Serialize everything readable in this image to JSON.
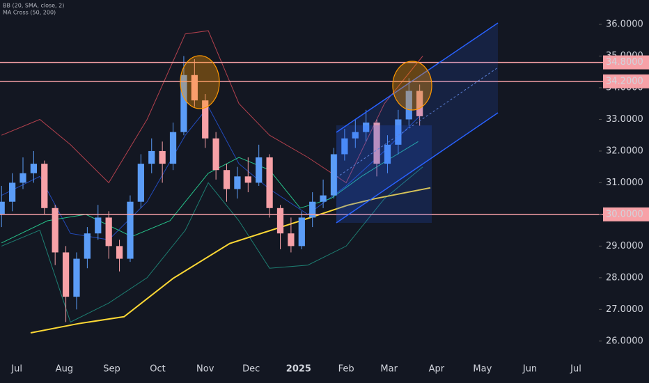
{
  "chart_data": {
    "type": "candlestick",
    "indicators": [
      "BB (20, SMA, close, 2)",
      "MA Cross (50, 200)"
    ],
    "up_color": "#5b9cf6",
    "down_color": "#f7a1a7",
    "x": [
      -10,
      -3,
      4,
      11,
      18,
      25,
      32,
      39,
      46,
      53,
      60,
      67,
      74,
      81,
      88,
      95,
      102,
      109,
      116,
      123,
      130,
      137,
      144,
      151,
      158,
      165,
      172,
      179,
      186,
      193,
      200,
      207,
      214,
      221,
      228,
      235,
      242,
      249,
      256,
      263
    ],
    "open": [
      30.0,
      30.4,
      31.0,
      31.3,
      31.6,
      30.2,
      28.8,
      27.4,
      28.6,
      29.4,
      29.9,
      29.0,
      28.6,
      30.4,
      31.6,
      32.0,
      31.6,
      32.6,
      34.4,
      33.6,
      32.4,
      31.4,
      30.8,
      31.2,
      31.0,
      31.8,
      30.2,
      29.4,
      29.0,
      29.9,
      30.4,
      30.6,
      31.9,
      32.4,
      32.6,
      32.9,
      31.6,
      32.2,
      33.0,
      33.9
    ],
    "high": [
      30.9,
      31.3,
      31.8,
      32.0,
      31.7,
      30.3,
      29.0,
      28.8,
      29.6,
      30.3,
      30.1,
      29.2,
      30.6,
      31.9,
      32.4,
      32.3,
      32.9,
      35.0,
      34.9,
      33.8,
      32.6,
      31.6,
      31.5,
      31.8,
      32.2,
      31.9,
      30.3,
      29.9,
      30.1,
      30.7,
      31.1,
      32.1,
      32.7,
      33.0,
      33.3,
      33.0,
      32.5,
      33.3,
      34.3,
      34.1
    ],
    "low": [
      29.6,
      30.1,
      30.8,
      31.0,
      30.0,
      28.4,
      26.6,
      27.0,
      28.3,
      29.2,
      28.6,
      28.2,
      28.5,
      30.2,
      31.3,
      31.0,
      31.4,
      32.5,
      33.4,
      32.1,
      31.1,
      30.4,
      30.5,
      30.7,
      30.9,
      29.9,
      28.9,
      28.8,
      28.9,
      29.6,
      30.2,
      30.5,
      31.7,
      32.1,
      32.3,
      31.2,
      31.3,
      31.9,
      32.8,
      32.8
    ],
    "close": [
      30.4,
      31.0,
      31.3,
      31.6,
      30.2,
      28.8,
      27.4,
      28.6,
      29.4,
      29.9,
      29.0,
      28.6,
      30.4,
      31.6,
      32.0,
      31.6,
      32.6,
      34.4,
      33.6,
      32.4,
      31.4,
      30.8,
      31.2,
      31.0,
      31.8,
      30.2,
      29.4,
      29.0,
      29.9,
      30.4,
      30.6,
      31.9,
      32.4,
      32.6,
      32.9,
      31.6,
      32.2,
      33.0,
      33.9,
      33.1
    ],
    "overlays": [
      {
        "color": "#f7525f",
        "x": [
          -10,
          15,
          35,
          60,
          85,
          110,
          125,
          145,
          165,
          190,
          215,
          240,
          265
        ],
        "values": [
          32.5,
          33.0,
          32.2,
          31.0,
          33.0,
          35.7,
          35.8,
          33.5,
          32.5,
          31.8,
          31.0,
          33.5,
          35.0
        ]
      },
      {
        "color": "#22ab94",
        "x": [
          -10,
          15,
          35,
          60,
          85,
          110,
          125,
          145,
          165,
          190,
          215,
          240,
          265
        ],
        "values": [
          29.0,
          29.5,
          26.6,
          27.2,
          28.0,
          29.5,
          31.0,
          29.8,
          28.3,
          28.4,
          29.0,
          30.5,
          31.5
        ]
      },
      {
        "color": "#2962ff",
        "x": [
          -10,
          15,
          35,
          60,
          85,
          110,
          125,
          145,
          165,
          190,
          215,
          240,
          265
        ],
        "values": [
          30.6,
          31.2,
          29.4,
          29.2,
          30.4,
          32.5,
          33.4,
          31.6,
          30.8,
          30.0,
          30.9,
          32.0,
          33.2
        ]
      },
      {
        "color": "#26c28a",
        "x": [
          -10,
          20,
          45,
          75,
          100,
          125,
          145,
          165,
          185,
          205,
          225,
          245,
          262
        ],
        "values": [
          29.1,
          29.8,
          30.0,
          29.3,
          29.8,
          31.3,
          31.8,
          31.4,
          30.2,
          30.5,
          31.2,
          31.8,
          32.3
        ]
      },
      {
        "color": "#fdd835",
        "x": [
          9,
          40,
          70,
          102,
          139,
          184,
          216,
          234,
          270
        ],
        "values": [
          26.26,
          26.55,
          26.77,
          27.98,
          29.08,
          29.78,
          30.29,
          30.5,
          30.84
        ]
      }
    ],
    "levels": [
      {
        "value": 34.8,
        "label": "34.8000"
      },
      {
        "value": 34.2,
        "label": "34.2000"
      },
      {
        "value": 30.0,
        "label": "30.0000"
      }
    ],
    "level_color": "#f7a1a7",
    "xlim": [
      -11,
      380
    ],
    "ylim": [
      25.38,
      36.77
    ],
    "yticks": [
      {
        "value": 26,
        "label": "26.0000"
      },
      {
        "value": 27,
        "label": "27.0000"
      },
      {
        "value": 28,
        "label": "28.0000"
      },
      {
        "value": 29,
        "label": "29.0000"
      },
      {
        "value": 30,
        "label": "30.0000"
      },
      {
        "value": 31,
        "label": "31.0000"
      },
      {
        "value": 32,
        "label": "32.0000"
      },
      {
        "value": 33,
        "label": "33.0000"
      },
      {
        "value": 34,
        "label": "34.0000"
      },
      {
        "value": 35,
        "label": "35.0000"
      },
      {
        "value": 36,
        "label": "36.0000"
      }
    ],
    "xticks": [
      {
        "value": 0,
        "label": "Jul"
      },
      {
        "value": 31,
        "label": "Aug"
      },
      {
        "value": 62,
        "label": "Sep"
      },
      {
        "value": 92,
        "label": "Oct"
      },
      {
        "value": 123,
        "label": "Nov"
      },
      {
        "value": 153,
        "label": "Dec"
      },
      {
        "value": 184,
        "label": "2025"
      },
      {
        "value": 215,
        "label": "Feb"
      },
      {
        "value": 243,
        "label": "Mar"
      },
      {
        "value": 274,
        "label": "Apr"
      },
      {
        "value": 304,
        "label": "May"
      },
      {
        "value": 335,
        "label": "Jun"
      },
      {
        "value": 365,
        "label": "Jul"
      }
    ]
  }
}
